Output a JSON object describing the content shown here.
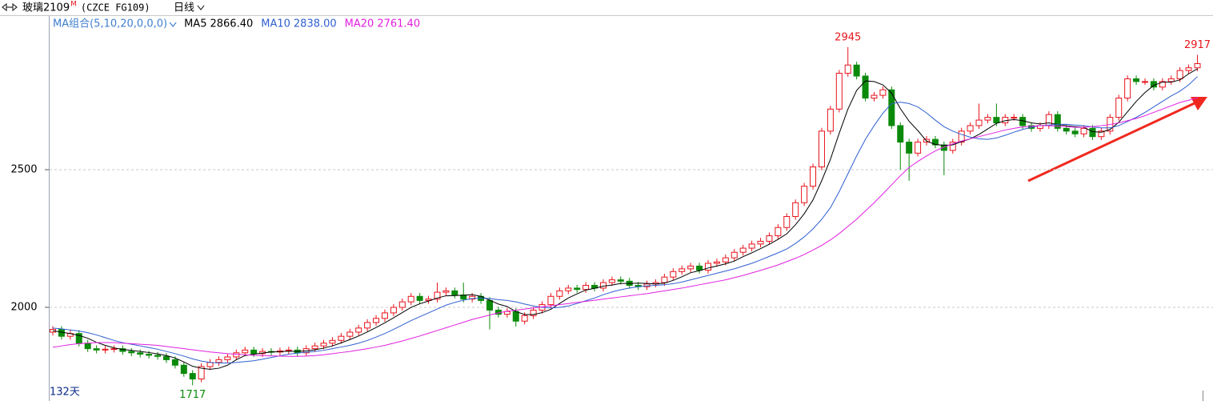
{
  "chart_data": {
    "type": "candlestick",
    "title": "玻璃2109",
    "title_superscript": "M",
    "subtitle": "(CZCE FG109)",
    "period": "日线",
    "indicator": "MA组合(5,10,20,0,0,0)",
    "day_count": "132天",
    "ylim": [
      1660,
      3058
    ],
    "yticks": [
      2000,
      2500
    ],
    "grid": true,
    "up_color": "#e8141c",
    "down_color": "#0a8a0a",
    "open": [
      1910,
      1920,
      1895,
      1905,
      1870,
      1850,
      1845,
      1848,
      1850,
      1840,
      1835,
      1830,
      1826,
      1822,
      1810,
      1790,
      1760,
      1740,
      1785,
      1800,
      1810,
      1820,
      1835,
      1845,
      1832,
      1840,
      1838,
      1842,
      1845,
      1835,
      1850,
      1860,
      1870,
      1880,
      1895,
      1910,
      1925,
      1945,
      1960,
      1980,
      2000,
      2020,
      2040,
      2025,
      2030,
      2055,
      2060,
      2045,
      2030,
      2040,
      2025,
      1990,
      1975,
      1985,
      1950,
      1970,
      1990,
      2010,
      2040,
      2060,
      2070,
      2065,
      2080,
      2070,
      2090,
      2100,
      2095,
      2080,
      2075,
      2085,
      2090,
      2110,
      2130,
      2140,
      2150,
      2135,
      2160,
      2165,
      2180,
      2200,
      2215,
      2230,
      2240,
      2260,
      2290,
      2330,
      2380,
      2440,
      2510,
      2640,
      2720,
      2850,
      2880,
      2840,
      2760,
      2770,
      2790,
      2660,
      2600,
      2560,
      2600,
      2610,
      2590,
      2570,
      2600,
      2640,
      2660,
      2680,
      2690,
      2670,
      2690,
      2690,
      2660,
      2650,
      2660,
      2700,
      2650,
      2640,
      2630,
      2650,
      2620,
      2640,
      2690,
      2760,
      2830,
      2820,
      2820,
      2800,
      2820,
      2830,
      2860,
      2870
    ],
    "high": [
      1932,
      1932,
      1917,
      1917,
      1882,
      1862,
      1860,
      1862,
      1862,
      1852,
      1847,
      1842,
      1838,
      1834,
      1822,
      1802,
      1772,
      1797,
      1812,
      1822,
      1832,
      1847,
      1857,
      1857,
      1852,
      1852,
      1854,
      1857,
      1857,
      1862,
      1872,
      1882,
      1892,
      1907,
      1922,
      1937,
      1957,
      1972,
      1992,
      2012,
      2032,
      2052,
      2052,
      2042,
      2090,
      2072,
      2072,
      2090,
      2052,
      2052,
      2037,
      2002,
      1997,
      1997,
      1982,
      2002,
      2022,
      2052,
      2072,
      2082,
      2082,
      2092,
      2092,
      2102,
      2112,
      2112,
      2107,
      2092,
      2097,
      2102,
      2122,
      2142,
      2152,
      2162,
      2162,
      2172,
      2177,
      2192,
      2212,
      2227,
      2242,
      2252,
      2272,
      2302,
      2342,
      2392,
      2452,
      2522,
      2652,
      2732,
      2862,
      2945,
      2892,
      2852,
      2782,
      2802,
      2802,
      2672,
      2612,
      2612,
      2622,
      2622,
      2602,
      2612,
      2652,
      2672,
      2740,
      2702,
      2740,
      2702,
      2702,
      2702,
      2672,
      2672,
      2712,
      2712,
      2662,
      2652,
      2662,
      2662,
      2652,
      2702,
      2772,
      2842,
      2842,
      2832,
      2832,
      2832,
      2842,
      2872,
      2882,
      2917
    ],
    "low": [
      1898,
      1883,
      1883,
      1858,
      1838,
      1833,
      1833,
      1836,
      1828,
      1823,
      1818,
      1814,
      1810,
      1798,
      1778,
      1748,
      1717,
      1728,
      1773,
      1788,
      1798,
      1808,
      1823,
      1820,
      1820,
      1826,
      1826,
      1830,
      1823,
      1823,
      1838,
      1848,
      1858,
      1868,
      1883,
      1898,
      1913,
      1933,
      1948,
      1968,
      1988,
      2008,
      2013,
      2013,
      2018,
      2043,
      2033,
      2018,
      2018,
      2013,
      1920,
      1963,
      1963,
      1930,
      1938,
      1958,
      1978,
      1998,
      2028,
      2048,
      2053,
      2053,
      2058,
      2058,
      2078,
      2083,
      2068,
      2063,
      2063,
      2073,
      2078,
      2098,
      2118,
      2128,
      2123,
      2123,
      2148,
      2153,
      2168,
      2188,
      2203,
      2218,
      2228,
      2248,
      2278,
      2318,
      2368,
      2428,
      2498,
      2628,
      2708,
      2838,
      2828,
      2748,
      2748,
      2758,
      2648,
      2500,
      2460,
      2548,
      2588,
      2578,
      2480,
      2558,
      2588,
      2628,
      2648,
      2668,
      2658,
      2658,
      2678,
      2648,
      2638,
      2638,
      2648,
      2638,
      2628,
      2618,
      2618,
      2608,
      2608,
      2628,
      2678,
      2748,
      2808,
      2808,
      2788,
      2788,
      2808,
      2818,
      2848,
      2858
    ],
    "close": [
      1920,
      1895,
      1905,
      1870,
      1850,
      1845,
      1848,
      1850,
      1840,
      1835,
      1830,
      1826,
      1822,
      1810,
      1790,
      1760,
      1740,
      1785,
      1800,
      1810,
      1820,
      1835,
      1845,
      1832,
      1840,
      1838,
      1842,
      1845,
      1835,
      1850,
      1860,
      1870,
      1880,
      1895,
      1910,
      1925,
      1945,
      1960,
      1980,
      2000,
      2020,
      2040,
      2025,
      2030,
      2055,
      2060,
      2045,
      2030,
      2040,
      2025,
      1990,
      1975,
      1985,
      1950,
      1970,
      1990,
      2010,
      2040,
      2060,
      2070,
      2065,
      2080,
      2070,
      2090,
      2100,
      2095,
      2080,
      2075,
      2085,
      2090,
      2110,
      2130,
      2140,
      2150,
      2135,
      2160,
      2165,
      2180,
      2200,
      2215,
      2230,
      2240,
      2260,
      2290,
      2330,
      2380,
      2440,
      2510,
      2640,
      2720,
      2850,
      2880,
      2840,
      2760,
      2770,
      2790,
      2660,
      2600,
      2560,
      2600,
      2610,
      2590,
      2570,
      2600,
      2640,
      2660,
      2680,
      2690,
      2670,
      2690,
      2690,
      2660,
      2650,
      2660,
      2700,
      2650,
      2640,
      2630,
      2650,
      2620,
      2640,
      2690,
      2760,
      2830,
      2820,
      2820,
      2800,
      2820,
      2830,
      2860,
      2870,
      2885
    ],
    "annotations": [
      {
        "index": 91,
        "field": "high",
        "color": "#e8141c"
      },
      {
        "index": 16,
        "field": "low",
        "color": "#0a8a0a"
      },
      {
        "index": 131,
        "field": "high",
        "color": "#e8141c"
      }
    ],
    "series": [
      {
        "name": "MA5",
        "current_label": "2866.40",
        "color": "#000000",
        "values": [
          1915,
          1910,
          1905,
          1898,
          1888,
          1873,
          1862,
          1853,
          1847,
          1844,
          1840,
          1836,
          1831,
          1825,
          1816,
          1802,
          1786,
          1779,
          1775,
          1779,
          1790,
          1810,
          1825,
          1830,
          1834,
          1838,
          1839,
          1841,
          1840,
          1842,
          1846,
          1852,
          1860,
          1871,
          1883,
          1896,
          1911,
          1927,
          1944,
          1962,
          1981,
          2000,
          2013,
          2023,
          2034,
          2042,
          2043,
          2044,
          2046,
          2040,
          2026,
          2012,
          2003,
          1985,
          1974,
          1974,
          1981,
          1993,
          2014,
          2034,
          2049,
          2063,
          2069,
          2077,
          2081,
          2087,
          2087,
          2088,
          2087,
          2085,
          2088,
          2098,
          2111,
          2126,
          2133,
          2143,
          2150,
          2158,
          2168,
          2184,
          2198,
          2213,
          2229,
          2247,
          2267,
          2300,
          2340,
          2390,
          2460,
          2538,
          2632,
          2720,
          2788,
          2822,
          2820,
          2808,
          2778,
          2722,
          2676,
          2642,
          2604,
          2592,
          2588,
          2590,
          2602,
          2612,
          2628,
          2648,
          2668,
          2678,
          2682,
          2678,
          2670,
          2666,
          2670,
          2664,
          2660,
          2656,
          2654,
          2638,
          2636,
          2646,
          2672,
          2710,
          2748,
          2780,
          2806,
          2818,
          2818,
          2826,
          2848,
          2866.4
        ]
      },
      {
        "name": "MA10",
        "current_label": "2838.00",
        "color": "#2f5fd0",
        "values": [
          1925,
          1922,
          1918,
          1914,
          1908,
          1900,
          1890,
          1880,
          1872,
          1866,
          1860,
          1854,
          1848,
          1840,
          1832,
          1823,
          1813,
          1805,
          1800,
          1798,
          1798,
          1800,
          1803,
          1806,
          1812,
          1818,
          1824,
          1830,
          1834,
          1837,
          1840,
          1844,
          1850,
          1856,
          1862,
          1870,
          1880,
          1892,
          1905,
          1920,
          1936,
          1952,
          1966,
          1980,
          1994,
          2008,
          2018,
          2026,
          2032,
          2034,
          2032,
          2028,
          2025,
          2020,
          2012,
          2005,
          2000,
          1998,
          2000,
          2005,
          2014,
          2024,
          2034,
          2046,
          2056,
          2064,
          2070,
          2075,
          2078,
          2080,
          2082,
          2086,
          2092,
          2100,
          2108,
          2116,
          2124,
          2132,
          2140,
          2150,
          2160,
          2172,
          2185,
          2198,
          2212,
          2232,
          2256,
          2285,
          2320,
          2362,
          2420,
          2485,
          2550,
          2610,
          2660,
          2705,
          2740,
          2745,
          2740,
          2728,
          2706,
          2680,
          2656,
          2640,
          2628,
          2618,
          2612,
          2610,
          2615,
          2625,
          2636,
          2646,
          2654,
          2660,
          2662,
          2664,
          2665,
          2662,
          2660,
          2655,
          2652,
          2652,
          2660,
          2675,
          2690,
          2708,
          2728,
          2748,
          2768,
          2785,
          2808,
          2838
        ]
      },
      {
        "name": "MA20",
        "current_label": "2761.40",
        "color": "#e020e0",
        "values": [
          1855,
          1860,
          1865,
          1868,
          1870,
          1872,
          1872,
          1872,
          1870,
          1868,
          1866,
          1864,
          1862,
          1858,
          1854,
          1850,
          1846,
          1842,
          1838,
          1835,
          1832,
          1830,
          1828,
          1826,
          1825,
          1824,
          1823,
          1822,
          1822,
          1823,
          1825,
          1828,
          1832,
          1836,
          1840,
          1845,
          1850,
          1856,
          1862,
          1870,
          1878,
          1887,
          1896,
          1906,
          1916,
          1926,
          1936,
          1946,
          1956,
          1964,
          1972,
          1980,
          1986,
          1990,
          1994,
          1998,
          2002,
          2006,
          2010,
          2014,
          2018,
          2022,
          2026,
          2030,
          2034,
          2038,
          2042,
          2046,
          2050,
          2055,
          2060,
          2065,
          2070,
          2076,
          2082,
          2088,
          2094,
          2100,
          2108,
          2116,
          2125,
          2134,
          2144,
          2154,
          2166,
          2178,
          2192,
          2208,
          2225,
          2245,
          2268,
          2294,
          2320,
          2350,
          2380,
          2412,
          2445,
          2478,
          2508,
          2530,
          2550,
          2568,
          2582,
          2594,
          2604,
          2612,
          2620,
          2628,
          2636,
          2644,
          2650,
          2655,
          2658,
          2660,
          2660,
          2658,
          2656,
          2654,
          2654,
          2656,
          2660,
          2664,
          2670,
          2678,
          2686,
          2696,
          2708,
          2720,
          2732,
          2744,
          2752,
          2761.4
        ]
      }
    ]
  }
}
